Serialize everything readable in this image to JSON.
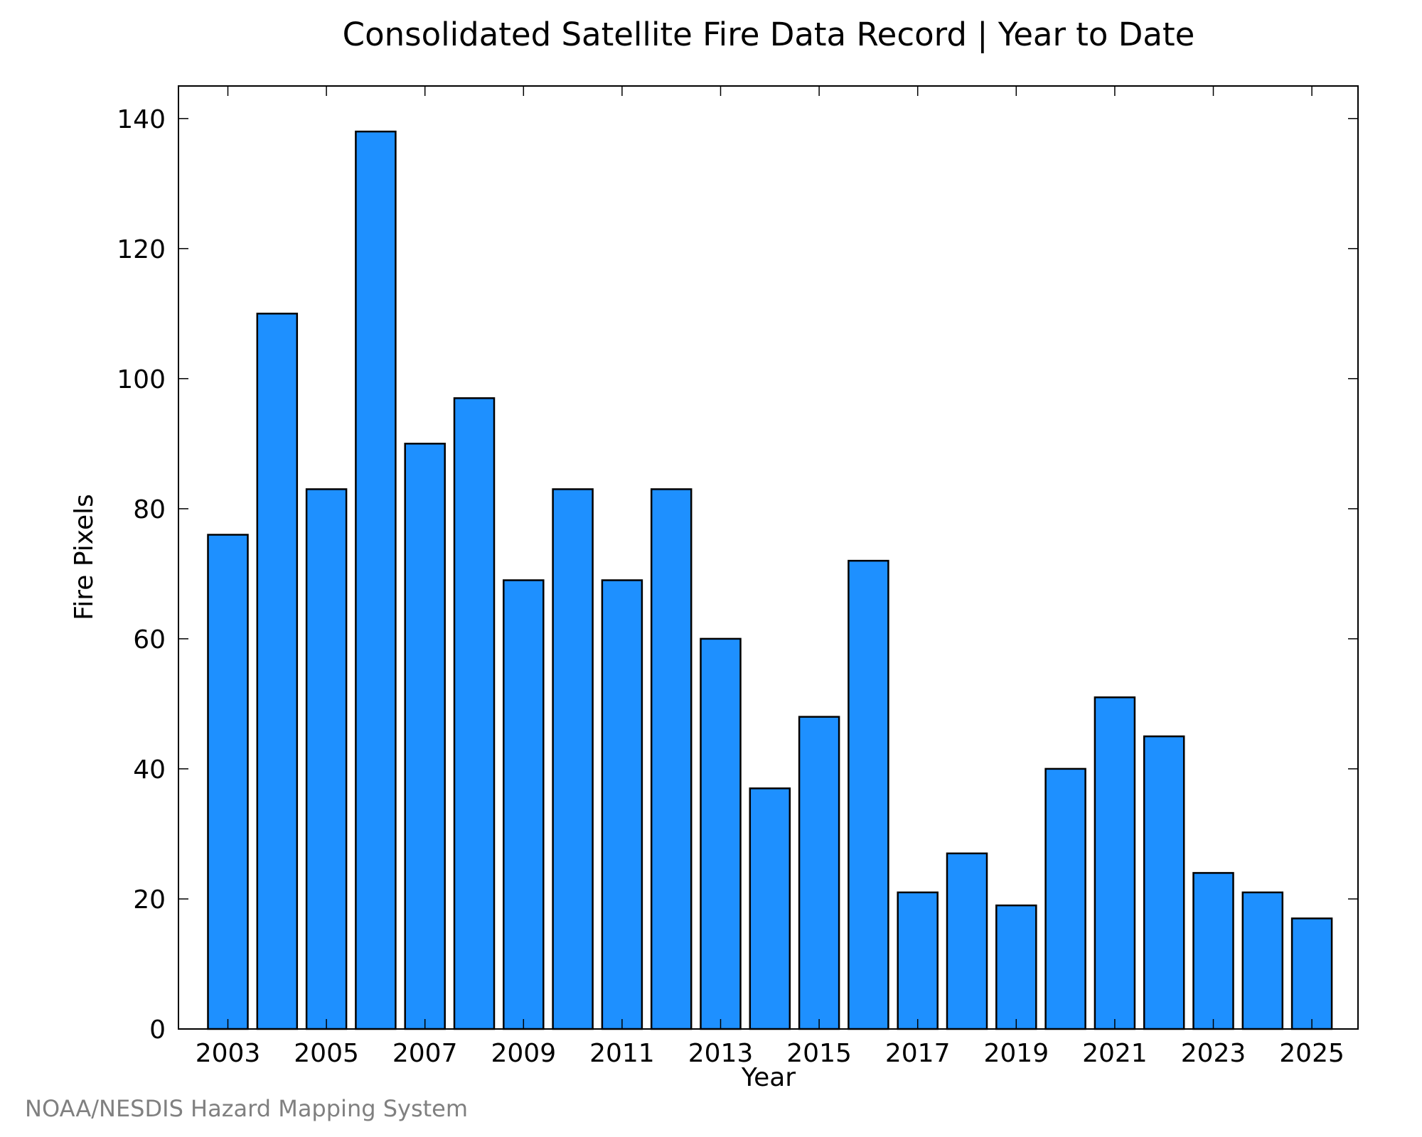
{
  "chart_data": {
    "type": "bar",
    "title": "Consolidated Satellite Fire Data Record | Year to Date",
    "xlabel": "Year",
    "ylabel": "Fire Pixels",
    "categories": [
      "2003",
      "2004",
      "2005",
      "2006",
      "2007",
      "2008",
      "2009",
      "2010",
      "2011",
      "2012",
      "2013",
      "2014",
      "2015",
      "2016",
      "2017",
      "2018",
      "2019",
      "2020",
      "2021",
      "2022",
      "2023",
      "2024",
      "2025"
    ],
    "values": [
      76,
      110,
      83,
      138,
      90,
      97,
      69,
      83,
      69,
      83,
      60,
      37,
      48,
      72,
      21,
      27,
      19,
      40,
      51,
      45,
      24,
      21,
      17
    ],
    "x_tick_labels": [
      "2003",
      "2005",
      "2007",
      "2009",
      "2011",
      "2013",
      "2015",
      "2017",
      "2019",
      "2021",
      "2023",
      "2025"
    ],
    "y_ticks": [
      0,
      20,
      40,
      60,
      80,
      100,
      120,
      140
    ],
    "ylim": [
      0,
      145
    ],
    "grid": false,
    "bar_color": "#1e90ff",
    "bar_edge_color": "#000000"
  },
  "source": "NOAA/NESDIS Hazard Mapping System"
}
